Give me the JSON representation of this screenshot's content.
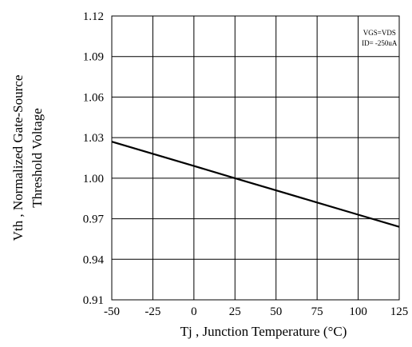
{
  "chart_data": {
    "type": "line",
    "title": "",
    "xlabel": "Tj , Junction Temperature (°C)",
    "ylabel_line1": "Vth , Normalized Gate-Source",
    "ylabel_line2": "Threshold Voltage",
    "xlim": [
      -50,
      125
    ],
    "ylim": [
      0.91,
      1.12
    ],
    "x_ticks": [
      -50,
      -25,
      0,
      25,
      50,
      75,
      100,
      125
    ],
    "x_tick_labels": [
      "-50",
      "-25",
      "0",
      "25",
      "50",
      "75",
      "100",
      "125"
    ],
    "y_ticks": [
      0.91,
      0.94,
      0.97,
      1.0,
      1.03,
      1.06,
      1.09,
      1.12
    ],
    "y_tick_labels": [
      "0.91",
      "0.94",
      "0.97",
      "1.00",
      "1.03",
      "1.06",
      "1.09",
      "1.12"
    ],
    "grid": true,
    "annotation_lines": [
      "VGS=VDS",
      "ID= -250uA"
    ],
    "series": [
      {
        "x": [
          -50,
          0,
          25,
          50,
          100,
          125
        ],
        "y": [
          1.027,
          1.009,
          1.0,
          0.991,
          0.973,
          0.964
        ]
      }
    ],
    "colors": {
      "line": "#000000",
      "grid": "#000000",
      "frame": "#000000"
    }
  }
}
